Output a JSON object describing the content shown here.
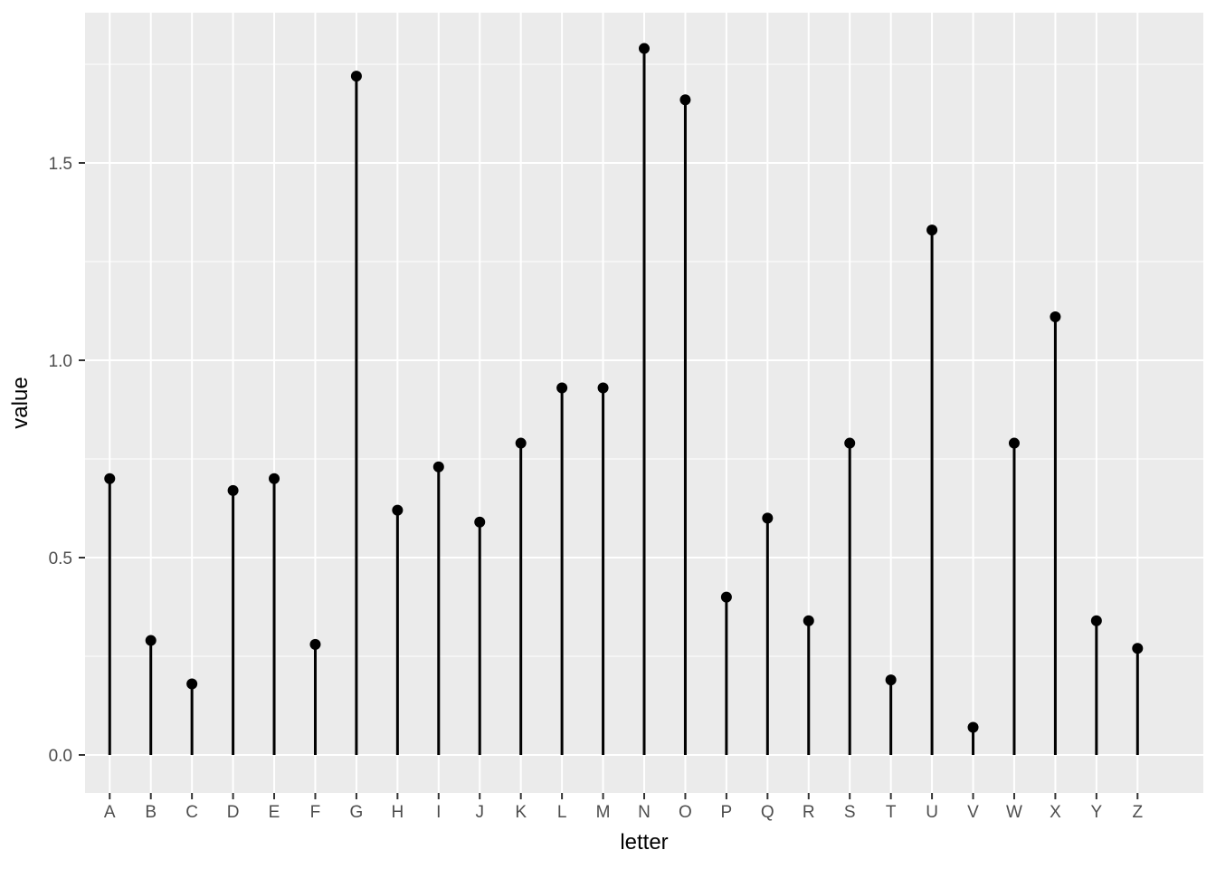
{
  "chart_data": {
    "type": "scatter",
    "variant": "lollipop-stem (points with vertical segments to zero)",
    "title": "",
    "xlabel": "letter",
    "ylabel": "value",
    "categories": [
      "A",
      "B",
      "C",
      "D",
      "E",
      "F",
      "G",
      "H",
      "I",
      "J",
      "K",
      "L",
      "M",
      "N",
      "O",
      "P",
      "Q",
      "R",
      "S",
      "T",
      "U",
      "V",
      "W",
      "X",
      "Y",
      "Z"
    ],
    "values": [
      0.7,
      0.29,
      0.18,
      0.67,
      0.7,
      0.28,
      1.72,
      0.62,
      0.73,
      0.59,
      0.79,
      0.93,
      0.93,
      1.79,
      1.66,
      0.4,
      0.6,
      0.34,
      0.79,
      0.19,
      1.33,
      0.07,
      0.79,
      1.11,
      0.34,
      0.27
    ],
    "ylim": [
      -0.1,
      1.88
    ],
    "y_major_ticks": [
      0.0,
      0.5,
      1.0,
      1.5
    ],
    "y_tick_labels": [
      "0.0",
      "0.5",
      "1.0",
      "1.5"
    ],
    "y_minor_gridlines": [
      0.25,
      0.75,
      1.25,
      1.75
    ],
    "grid": "on",
    "legend": "none",
    "theme": {
      "style": "ggplot2-gray",
      "panel_background": "#EBEBEB",
      "grid_color": "#FFFFFF",
      "point_color": "#000000",
      "stem_color": "#000000",
      "tick_label_color": "#4D4D4D",
      "axis_title_color": "#000000",
      "tick_mark_color": "#333333",
      "outer_background": "#FFFFFF"
    }
  }
}
